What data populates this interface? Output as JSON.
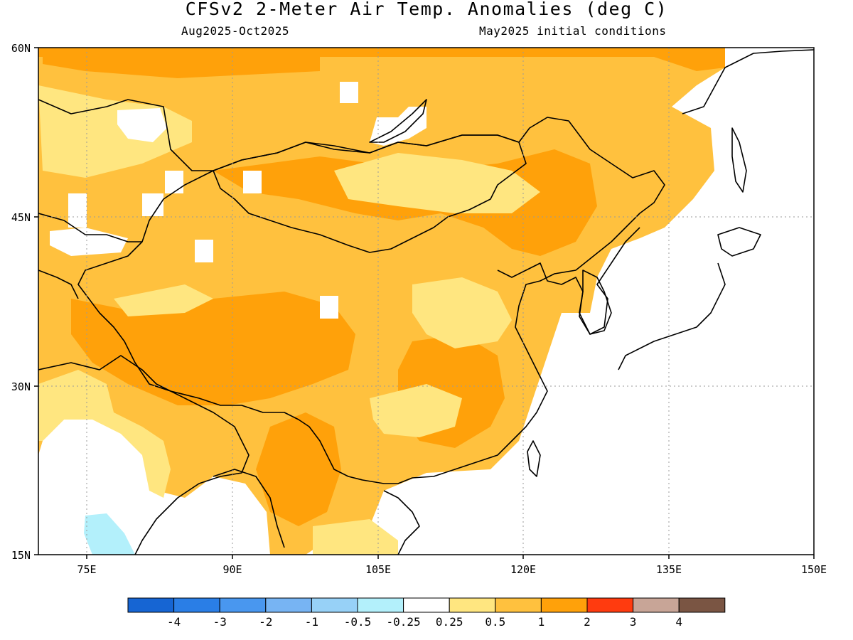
{
  "title": "CFSv2 2-Meter Air Temp. Anomalies (deg C)",
  "period": "Aug2025-Oct2025",
  "initial_conditions": "May2025 initial conditions",
  "map": {
    "lon_range": [
      70,
      150
    ],
    "lat_range": [
      15,
      60
    ],
    "lon_ticks": [
      "75E",
      "90E",
      "105E",
      "120E",
      "135E",
      "150E"
    ],
    "lat_ticks": [
      "15N",
      "30N",
      "45N",
      "60N"
    ],
    "dotted_gridlines": true
  },
  "colorbar": {
    "labels": [
      "-4",
      "-3",
      "-2",
      "-1",
      "-0.5",
      "-0.25",
      "0.25",
      "0.5",
      "1",
      "2",
      "3",
      "4"
    ],
    "colors": [
      "#1665d3",
      "#2a7ee6",
      "#4997ef",
      "#77b4f3",
      "#97d1f7",
      "#b3f0fb",
      "#ffffff",
      "#ffe680",
      "#ffc13e",
      "#ffa10a",
      "#ff3b0f",
      "#c8a597",
      "#7a5543"
    ]
  },
  "colors": {
    "anom_025_05": "#ffe680",
    "anom_05_1": "#ffc13e",
    "anom_1_2": "#ffa10a",
    "anom_m025_m05": "#b3f0fb",
    "coastline": "#000000"
  }
}
